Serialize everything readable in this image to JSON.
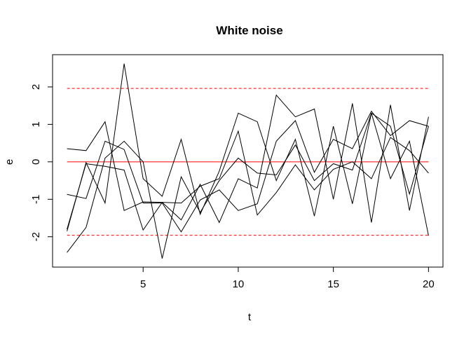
{
  "chart_data": {
    "type": "line",
    "title": "White noise",
    "xlabel": "t",
    "ylabel": "e",
    "xlim": [
      1,
      20
    ],
    "ylim": [
      -2.6,
      2.65
    ],
    "x_ticks": [
      5,
      10,
      15,
      20
    ],
    "y_ticks": [
      -2,
      -1,
      0,
      1,
      2
    ],
    "x": [
      1,
      2,
      3,
      4,
      5,
      6,
      7,
      8,
      9,
      10,
      11,
      12,
      13,
      14,
      15,
      16,
      17,
      18,
      19,
      20
    ],
    "series": [
      {
        "color": "#000000",
        "values": [
          0.35,
          0.3,
          1.07,
          -1.3,
          -1.07,
          -1.08,
          -1.55,
          -0.6,
          -1.62,
          -0.45,
          -0.7,
          1.78,
          1.2,
          1.41,
          -1.0,
          1.56,
          -1.62,
          1.52,
          -1.3,
          1.2
        ]
      },
      {
        "color": "#000000",
        "values": [
          -0.87,
          -0.98,
          0.55,
          0.33,
          -1.1,
          -1.1,
          -1.87,
          -1.02,
          -0.75,
          -1.3,
          -1.12,
          0.55,
          1.1,
          -0.28,
          0.6,
          0.35,
          1.35,
          0.7,
          1.1,
          0.95
        ]
      },
      {
        "color": "#000000",
        "values": [
          -1.85,
          -0.02,
          -1.1,
          2.62,
          -0.45,
          -0.92,
          0.6,
          -1.4,
          -0.25,
          1.3,
          1.07,
          -0.5,
          0.6,
          -1.45,
          0.95,
          -1.12,
          1.3,
          -0.45,
          0.55,
          -1.97
        ]
      },
      {
        "color": "#000000",
        "values": [
          -2.42,
          -1.75,
          0.1,
          0.55,
          0.0,
          -2.58,
          -0.4,
          -1.35,
          -0.5,
          0.1,
          -0.3,
          -0.35,
          0.45,
          -0.5,
          -0.05,
          -0.22,
          1.3,
          0.95,
          -0.86,
          0.95
        ]
      },
      {
        "color": "#000000",
        "values": [
          -1.8,
          -0.05,
          -0.12,
          -0.22,
          -1.82,
          -1.08,
          -1.1,
          -0.65,
          -0.45,
          0.82,
          -1.42,
          -0.82,
          -0.08,
          -0.75,
          -0.2,
          0.0,
          -0.45,
          0.65,
          0.3,
          -0.3
        ]
      }
    ],
    "reference_lines": [
      {
        "y": 0,
        "color": "#ff0000",
        "style": "solid"
      },
      {
        "y": 1.96,
        "color": "#ff0000",
        "style": "dashed"
      },
      {
        "y": -1.96,
        "color": "#ff0000",
        "style": "dashed"
      }
    ],
    "grid": false,
    "legend": "none"
  }
}
